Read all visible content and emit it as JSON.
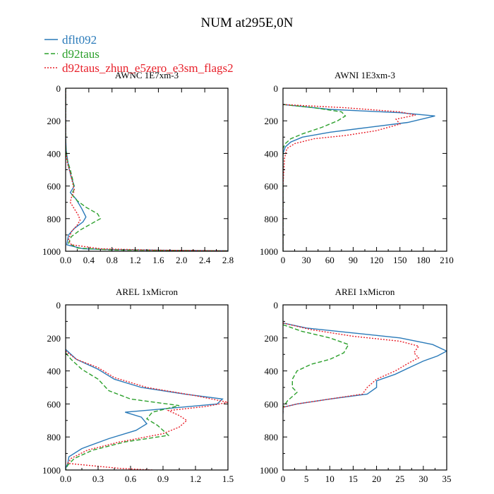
{
  "figure": {
    "title": "NUM at295E,0N"
  },
  "legend": {
    "entries": [
      {
        "label": "dflt092",
        "color": "#2a7ab9",
        "dash": "solid"
      },
      {
        "label": "d92taus",
        "color": "#2ca02c",
        "dash": "dashed"
      },
      {
        "label": "d92taus_zhun_e5zero_e3sm_flags2",
        "color": "#e8202a",
        "dash": "dotted"
      }
    ]
  },
  "chart_data": [
    {
      "type": "line",
      "title": "AWNC  1E7xm-3",
      "xlim": [
        0,
        2.8
      ],
      "ylim": [
        0,
        1000
      ],
      "y_inverted": true,
      "xticks": [
        0,
        0.4,
        0.8,
        1.2,
        1.6,
        2.0,
        2.4,
        2.8
      ],
      "xtick_labels": [
        "0.0",
        "0.4",
        "0.8",
        "1.2",
        "1.6",
        "2.0",
        "2.4",
        "2.8"
      ],
      "yticks": [
        0,
        200,
        400,
        600,
        800,
        1000
      ],
      "ytick_labels": [
        "0",
        "200",
        "400",
        "600",
        "800",
        "1000"
      ],
      "series": [
        {
          "name": "dflt092",
          "points": [
            [
              0,
              0
            ],
            [
              0,
              300
            ],
            [
              0.01,
              380
            ],
            [
              0.05,
              480
            ],
            [
              0.1,
              550
            ],
            [
              0.15,
              600
            ],
            [
              0.08,
              640
            ],
            [
              0.18,
              680
            ],
            [
              0.28,
              740
            ],
            [
              0.35,
              790
            ],
            [
              0.3,
              820
            ],
            [
              0.15,
              860
            ],
            [
              0.05,
              900
            ],
            [
              0.02,
              960
            ],
            [
              0.3,
              985
            ],
            [
              0.8,
              990
            ],
            [
              2.0,
              995
            ],
            [
              2.8,
              997
            ]
          ]
        },
        {
          "name": "d92taus",
          "points": [
            [
              0,
              0
            ],
            [
              0,
              350
            ],
            [
              0.02,
              430
            ],
            [
              0.08,
              500
            ],
            [
              0.12,
              560
            ],
            [
              0.15,
              620
            ],
            [
              0.1,
              650
            ],
            [
              0.2,
              690
            ],
            [
              0.35,
              730
            ],
            [
              0.55,
              770
            ],
            [
              0.6,
              800
            ],
            [
              0.45,
              830
            ],
            [
              0.25,
              870
            ],
            [
              0.1,
              910
            ],
            [
              0.05,
              950
            ],
            [
              0.2,
              980
            ],
            [
              0.8,
              992
            ],
            [
              2.8,
              998
            ]
          ]
        },
        {
          "name": "d92taus_zhun_e5zero_e3sm_flags2",
          "points": [
            [
              0,
              0
            ],
            [
              0,
              380
            ],
            [
              0.03,
              460
            ],
            [
              0.08,
              520
            ],
            [
              0.12,
              580
            ],
            [
              0.15,
              630
            ],
            [
              0.1,
              670
            ],
            [
              0.08,
              700
            ],
            [
              0.15,
              740
            ],
            [
              0.22,
              780
            ],
            [
              0.25,
              810
            ],
            [
              0.2,
              840
            ],
            [
              0.1,
              880
            ],
            [
              0.05,
              930
            ],
            [
              0.1,
              960
            ],
            [
              0.6,
              985
            ],
            [
              1.5,
              993
            ],
            [
              2.8,
              998
            ]
          ]
        }
      ]
    },
    {
      "type": "line",
      "title": "AWNI  1E3xm-3",
      "xlim": [
        0,
        210
      ],
      "ylim": [
        0,
        1000
      ],
      "y_inverted": true,
      "xticks": [
        0,
        30,
        60,
        90,
        120,
        150,
        180,
        210
      ],
      "xtick_labels": [
        "0",
        "30",
        "60",
        "90",
        "120",
        "150",
        "180",
        "210"
      ],
      "yticks": [
        0,
        200,
        400,
        600,
        800,
        1000
      ],
      "ytick_labels": [
        "0",
        "200",
        "400",
        "600",
        "800",
        "1000"
      ],
      "series": [
        {
          "name": "dflt092",
          "points": [
            [
              0,
              100
            ],
            [
              60,
              130
            ],
            [
              150,
              150
            ],
            [
              195,
              170
            ],
            [
              160,
              210
            ],
            [
              110,
              240
            ],
            [
              60,
              270
            ],
            [
              25,
              300
            ],
            [
              10,
              330
            ],
            [
              3,
              360
            ],
            [
              0,
              400
            ],
            [
              0,
              1000
            ]
          ]
        },
        {
          "name": "d92taus",
          "points": [
            [
              0,
              100
            ],
            [
              40,
              120
            ],
            [
              75,
              145
            ],
            [
              80,
              170
            ],
            [
              70,
              200
            ],
            [
              50,
              240
            ],
            [
              25,
              280
            ],
            [
              10,
              310
            ],
            [
              3,
              340
            ],
            [
              0,
              370
            ],
            [
              0,
              1000
            ]
          ]
        },
        {
          "name": "d92taus_zhun_e5zero_e3sm_flags2",
          "points": [
            [
              0,
              100
            ],
            [
              80,
              120
            ],
            [
              150,
              145
            ],
            [
              170,
              165
            ],
            [
              145,
              190
            ],
            [
              150,
              220
            ],
            [
              120,
              260
            ],
            [
              80,
              290
            ],
            [
              40,
              310
            ],
            [
              15,
              340
            ],
            [
              5,
              370
            ],
            [
              2,
              430
            ],
            [
              0,
              600
            ],
            [
              0,
              1000
            ]
          ]
        }
      ]
    },
    {
      "type": "line",
      "title": "AREL  1xMicron",
      "xlim": [
        0,
        1.5
      ],
      "ylim": [
        0,
        1000
      ],
      "y_inverted": true,
      "xticks": [
        0,
        0.3,
        0.6,
        0.9,
        1.2,
        1.5
      ],
      "xtick_labels": [
        "0.0",
        "0.3",
        "0.6",
        "0.9",
        "1.2",
        "1.5"
      ],
      "yticks": [
        0,
        200,
        400,
        600,
        800,
        1000
      ],
      "ytick_labels": [
        "0",
        "200",
        "400",
        "600",
        "800",
        "1000"
      ],
      "series": [
        {
          "name": "dflt092",
          "points": [
            [
              0,
              270
            ],
            [
              0.1,
              330
            ],
            [
              0.3,
              390
            ],
            [
              0.45,
              450
            ],
            [
              0.7,
              500
            ],
            [
              1.1,
              540
            ],
            [
              1.45,
              570
            ],
            [
              1.4,
              600
            ],
            [
              0.9,
              630
            ],
            [
              0.55,
              650
            ],
            [
              0.7,
              680
            ],
            [
              0.75,
              720
            ],
            [
              0.65,
              760
            ],
            [
              0.4,
              810
            ],
            [
              0.15,
              870
            ],
            [
              0.03,
              920
            ],
            [
              0.02,
              960
            ],
            [
              0.0,
              990
            ]
          ]
        },
        {
          "name": "d92taus",
          "points": [
            [
              0,
              290
            ],
            [
              0.05,
              330
            ],
            [
              0.15,
              390
            ],
            [
              0.3,
              450
            ],
            [
              0.4,
              520
            ],
            [
              0.6,
              570
            ],
            [
              1.05,
              610
            ],
            [
              0.8,
              650
            ],
            [
              0.75,
              690
            ],
            [
              0.85,
              730
            ],
            [
              0.95,
              790
            ],
            [
              0.55,
              830
            ],
            [
              0.25,
              880
            ],
            [
              0.08,
              930
            ],
            [
              0.02,
              970
            ],
            [
              0.0,
              1000
            ]
          ]
        },
        {
          "name": "d92taus_zhun_e5zero_e3sm_flags2",
          "points": [
            [
              0,
              280
            ],
            [
              0.1,
              330
            ],
            [
              0.3,
              380
            ],
            [
              0.45,
              440
            ],
            [
              0.75,
              500
            ],
            [
              1.2,
              550
            ],
            [
              1.5,
              590
            ],
            [
              1.3,
              615
            ],
            [
              0.95,
              640
            ],
            [
              1.05,
              670
            ],
            [
              1.12,
              700
            ],
            [
              1.05,
              740
            ],
            [
              0.9,
              780
            ],
            [
              0.5,
              830
            ],
            [
              0.2,
              880
            ],
            [
              0.05,
              930
            ],
            [
              0.02,
              960
            ],
            [
              0.5,
              990
            ],
            [
              0.8,
              1000
            ]
          ]
        }
      ]
    },
    {
      "type": "line",
      "title": "AREI  1xMicron",
      "xlim": [
        0,
        35
      ],
      "ylim": [
        0,
        1000
      ],
      "y_inverted": true,
      "xticks": [
        0,
        5,
        10,
        15,
        20,
        25,
        30,
        35
      ],
      "xtick_labels": [
        "0",
        "5",
        "10",
        "15",
        "20",
        "25",
        "30",
        "35"
      ],
      "yticks": [
        0,
        200,
        400,
        600,
        800,
        1000
      ],
      "ytick_labels": [
        "0",
        "200",
        "400",
        "600",
        "800",
        "1000"
      ],
      "series": [
        {
          "name": "dflt092",
          "points": [
            [
              0,
              110
            ],
            [
              5,
              140
            ],
            [
              15,
              170
            ],
            [
              25,
              200
            ],
            [
              32,
              240
            ],
            [
              35,
              280
            ],
            [
              33,
              310
            ],
            [
              30,
              340
            ],
            [
              27,
              380
            ],
            [
              24,
              420
            ],
            [
              20,
              460
            ],
            [
              20,
              500
            ],
            [
              18,
              540
            ],
            [
              10,
              570
            ],
            [
              3,
              600
            ],
            [
              0,
              620
            ],
            [
              0,
              660
            ]
          ]
        },
        {
          "name": "d92taus",
          "points": [
            [
              0,
              120
            ],
            [
              4,
              160
            ],
            [
              10,
              200
            ],
            [
              14,
              240
            ],
            [
              13,
              290
            ],
            [
              10,
              330
            ],
            [
              6,
              360
            ],
            [
              3,
              400
            ],
            [
              2,
              450
            ],
            [
              2,
              500
            ],
            [
              3,
              530
            ],
            [
              1,
              580
            ],
            [
              0,
              620
            ],
            [
              0,
              650
            ]
          ]
        },
        {
          "name": "d92taus_zhun_e5zero_e3sm_flags2",
          "points": [
            [
              0,
              110
            ],
            [
              6,
              150
            ],
            [
              15,
              190
            ],
            [
              25,
              220
            ],
            [
              29,
              250
            ],
            [
              28,
              290
            ],
            [
              29,
              320
            ],
            [
              27,
              350
            ],
            [
              24,
              400
            ],
            [
              20,
              450
            ],
            [
              18,
              500
            ],
            [
              17,
              540
            ],
            [
              10,
              570
            ],
            [
              3,
              600
            ],
            [
              0,
              620
            ],
            [
              0,
              650
            ]
          ]
        }
      ]
    }
  ]
}
